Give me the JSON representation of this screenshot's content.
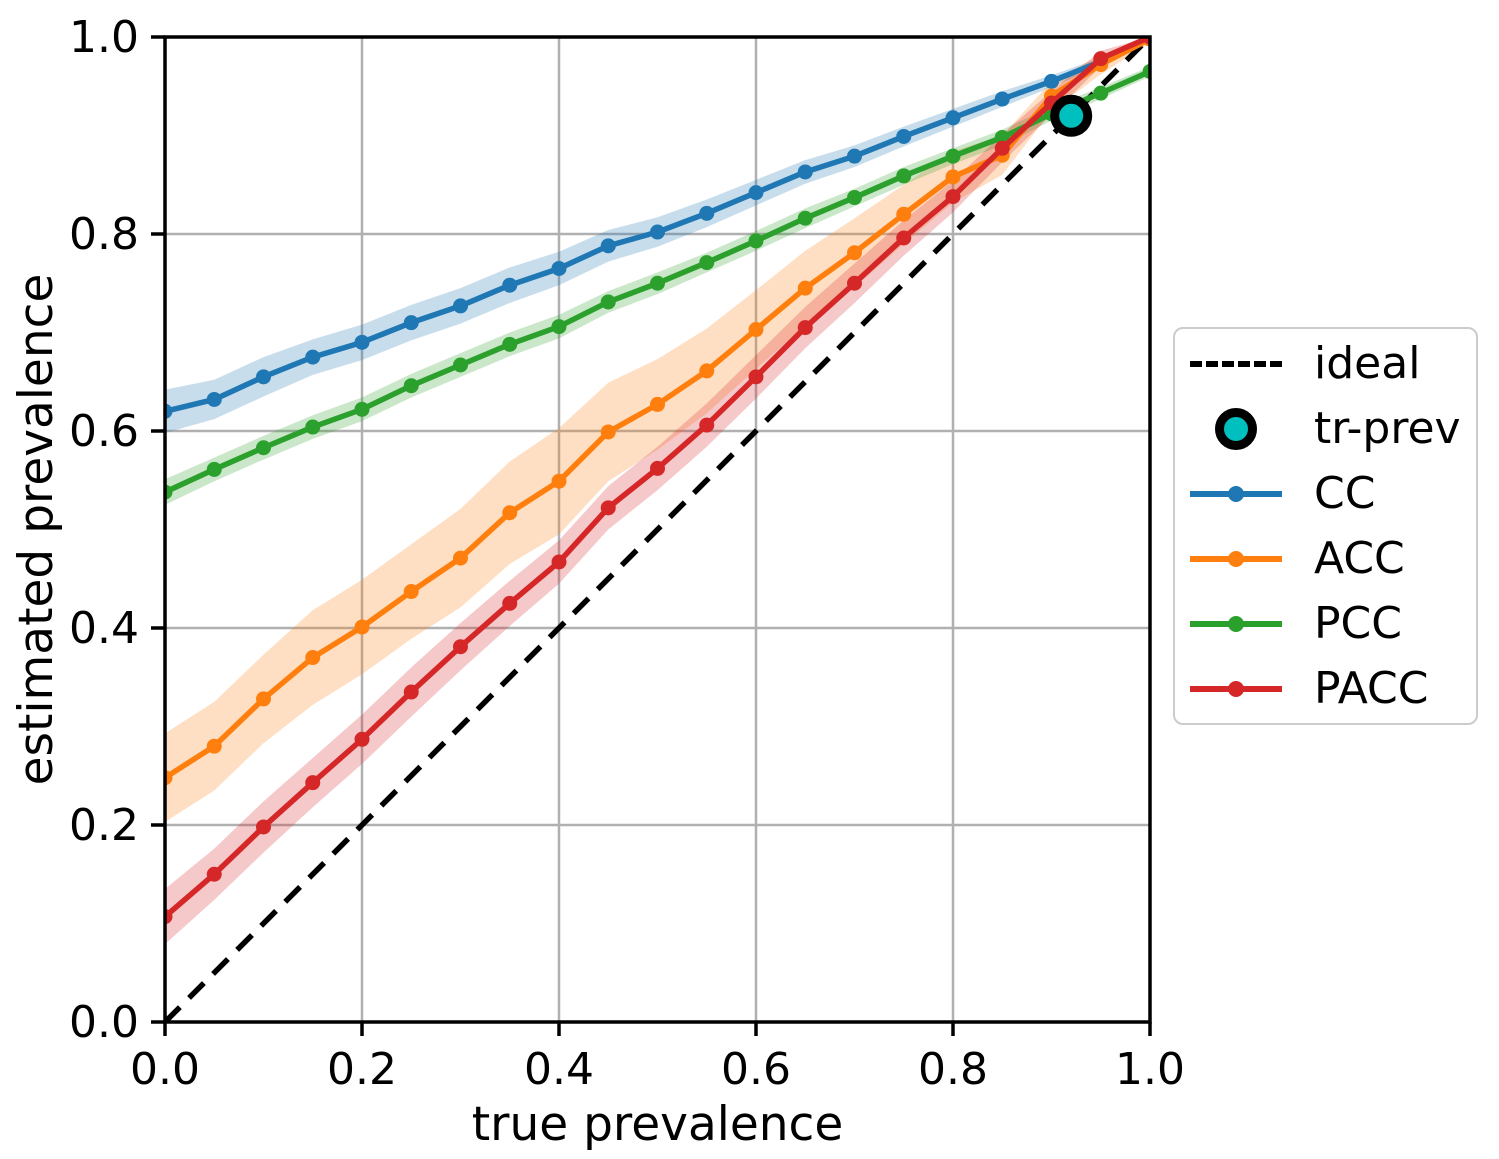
{
  "figure": {
    "xlabel": "true prevalence",
    "ylabel": "estimated prevalence"
  },
  "legend": {
    "items": [
      {
        "label": "ideal",
        "type": "dashed",
        "color": "#000000"
      },
      {
        "label": "tr-prev",
        "type": "circle",
        "color": "#00bfbf"
      },
      {
        "label": "CC",
        "type": "line",
        "color": "#1f77b4"
      },
      {
        "label": "ACC",
        "type": "line",
        "color": "#ff7f0e"
      },
      {
        "label": "PCC",
        "type": "line",
        "color": "#2ca02c"
      },
      {
        "label": "PACC",
        "type": "line",
        "color": "#d62728"
      }
    ]
  },
  "chart_data": {
    "type": "line",
    "title": "",
    "xlabel": "true prevalence",
    "ylabel": "estimated prevalence",
    "xlim": [
      0,
      1
    ],
    "ylim": [
      0,
      1
    ],
    "xticks": [
      "0.0",
      "0.2",
      "0.4",
      "0.6",
      "0.8",
      "1.0"
    ],
    "yticks": [
      "0.0",
      "0.2",
      "0.4",
      "0.6",
      "0.8",
      "1.0"
    ],
    "grid": true,
    "grid_color": "#b0b0b0",
    "legend_position": "outside center right",
    "x": [
      0.0,
      0.05,
      0.1,
      0.15,
      0.2,
      0.25,
      0.3,
      0.35,
      0.4,
      0.45,
      0.5,
      0.55,
      0.6,
      0.65,
      0.7,
      0.75,
      0.8,
      0.85,
      0.9,
      0.95,
      1.0
    ],
    "series": [
      {
        "name": "CC",
        "color": "#1f77b4",
        "values": [
          0.62,
          0.632,
          0.655,
          0.675,
          0.69,
          0.71,
          0.727,
          0.748,
          0.765,
          0.788,
          0.802,
          0.821,
          0.842,
          0.863,
          0.879,
          0.899,
          0.918,
          0.937,
          0.955,
          0.975,
          0.998
        ],
        "band_halfwidth": [
          0.022,
          0.02,
          0.02,
          0.018,
          0.018,
          0.018,
          0.018,
          0.018,
          0.017,
          0.016,
          0.015,
          0.014,
          0.013,
          0.012,
          0.011,
          0.01,
          0.009,
          0.008,
          0.006,
          0.004,
          0.002
        ]
      },
      {
        "name": "ACC",
        "color": "#ff7f0e",
        "values": [
          0.248,
          0.28,
          0.328,
          0.37,
          0.401,
          0.437,
          0.471,
          0.517,
          0.549,
          0.599,
          0.627,
          0.661,
          0.703,
          0.745,
          0.781,
          0.82,
          0.858,
          0.88,
          0.94,
          0.972,
          0.998
        ],
        "band_halfwidth": [
          0.045,
          0.045,
          0.045,
          0.048,
          0.048,
          0.048,
          0.05,
          0.052,
          0.054,
          0.05,
          0.046,
          0.043,
          0.04,
          0.038,
          0.035,
          0.03,
          0.026,
          0.02,
          0.015,
          0.01,
          0.004
        ]
      },
      {
        "name": "PCC",
        "color": "#2ca02c",
        "values": [
          0.538,
          0.561,
          0.583,
          0.604,
          0.622,
          0.646,
          0.667,
          0.688,
          0.706,
          0.731,
          0.75,
          0.771,
          0.793,
          0.816,
          0.837,
          0.859,
          0.879,
          0.898,
          0.922,
          0.943,
          0.965
        ],
        "band_halfwidth": [
          0.013,
          0.012,
          0.012,
          0.012,
          0.012,
          0.012,
          0.012,
          0.012,
          0.012,
          0.011,
          0.011,
          0.01,
          0.01,
          0.01,
          0.009,
          0.009,
          0.008,
          0.008,
          0.007,
          0.006,
          0.005
        ]
      },
      {
        "name": "PACC",
        "color": "#d62728",
        "values": [
          0.107,
          0.15,
          0.198,
          0.243,
          0.287,
          0.335,
          0.381,
          0.425,
          0.467,
          0.522,
          0.562,
          0.606,
          0.655,
          0.705,
          0.75,
          0.796,
          0.838,
          0.887,
          0.933,
          0.978,
          1.0
        ],
        "band_halfwidth": [
          0.028,
          0.026,
          0.026,
          0.025,
          0.025,
          0.025,
          0.024,
          0.023,
          0.022,
          0.022,
          0.022,
          0.022,
          0.022,
          0.021,
          0.02,
          0.018,
          0.016,
          0.014,
          0.012,
          0.008,
          0.003
        ]
      }
    ],
    "ideal_line": {
      "label": "ideal",
      "from": [
        0,
        0
      ],
      "to": [
        1,
        1
      ],
      "style": "dashed",
      "color": "#000000"
    },
    "tr_prev_marker": {
      "label": "tr-prev",
      "x": 0.92,
      "y": 0.92,
      "fill": "#00bfbf",
      "edge": "#000000"
    }
  }
}
